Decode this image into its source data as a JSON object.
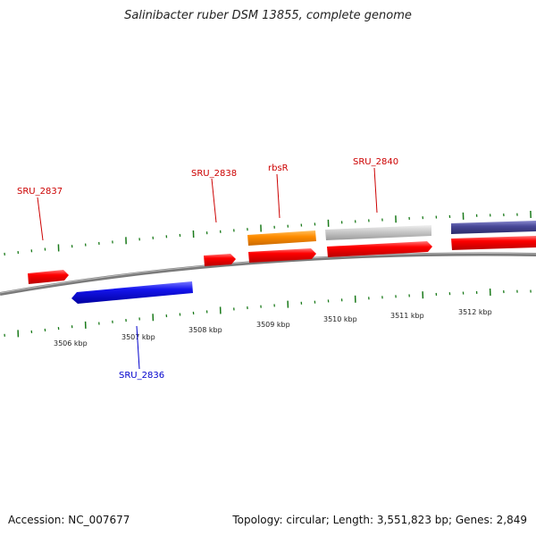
{
  "title": "Salinibacter ruber DSM 13855, complete genome",
  "footer": {
    "accession": "Accession: NC_007677",
    "topology": "Topology: circular; Length: 3,551,823 bp; Genes: 2,849"
  },
  "colors": {
    "forward_gene": "#ff0000",
    "reverse_gene": "#0000ee",
    "rrna": "#ff8c00",
    "grey_feature": "#c8c8c8",
    "purple_feature": "#4a4a9a",
    "backbone": "#7a7a7a",
    "tick": "#1a7a1a",
    "forward_label": "#cc0000",
    "reverse_label": "#0000cc"
  },
  "scale_labels": [
    "3506 kbp",
    "3507 kbp",
    "3508 kbp",
    "3509 kbp",
    "3510 kbp",
    "3511 kbp",
    "3512 kbp"
  ],
  "gene_labels": [
    {
      "text": "SRU_2837",
      "strand": "forward"
    },
    {
      "text": "SRU_2838",
      "strand": "forward"
    },
    {
      "text": "rbsR",
      "strand": "forward"
    },
    {
      "text": "SRU_2840",
      "strand": "forward"
    },
    {
      "text": "SRU_2836",
      "strand": "reverse"
    }
  ]
}
